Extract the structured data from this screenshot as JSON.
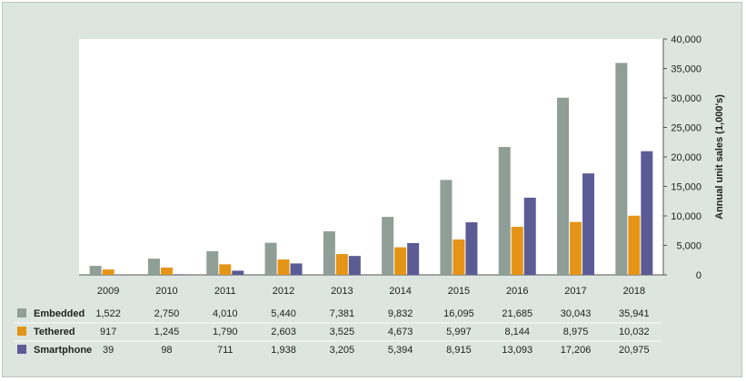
{
  "colors": {
    "embedded": "#8f9e97",
    "tethered": "#e49517",
    "smartphone": "#5b5b96",
    "background": "#dce5df",
    "plot_area": "#ffffff"
  },
  "chart_data": {
    "type": "bar",
    "title": "",
    "xlabel": "",
    "ylabel": "Annual unit sales (1,000's)",
    "ylim": [
      0,
      40000
    ],
    "y_ticks": [
      "0",
      "5,000",
      "10,000",
      "15,000",
      "20,000",
      "25,000",
      "30,000",
      "35,000",
      "40,000"
    ],
    "y_axis_position": "right",
    "grid": false,
    "legend_placement": "table-below",
    "categories": [
      "2009",
      "2010",
      "2011",
      "2012",
      "2013",
      "2014",
      "2015",
      "2016",
      "2017",
      "2018"
    ],
    "series": [
      {
        "name": "Embedded",
        "color_key": "embedded",
        "values": [
          1522,
          2750,
          4010,
          5440,
          7381,
          9832,
          16095,
          21685,
          30043,
          35941
        ],
        "labels": [
          "1,522",
          "2,750",
          "4,010",
          "5,440",
          "7,381",
          "9,832",
          "16,095",
          "21,685",
          "30,043",
          "35,941"
        ]
      },
      {
        "name": "Tethered",
        "color_key": "tethered",
        "values": [
          917,
          1245,
          1790,
          2603,
          3525,
          4673,
          5997,
          8144,
          8975,
          10032
        ],
        "labels": [
          "917",
          "1,245",
          "1,790",
          "2,603",
          "3,525",
          "4,673",
          "5,997",
          "8,144",
          "8,975",
          "10,032"
        ]
      },
      {
        "name": "Smartphone",
        "color_key": "smartphone",
        "values": [
          39,
          98,
          711,
          1938,
          3205,
          5394,
          8915,
          13093,
          17206,
          20975
        ],
        "labels": [
          "39",
          "98",
          "711",
          "1,938",
          "3,205",
          "5,394",
          "8,915",
          "13,093",
          "17,206",
          "20,975"
        ]
      }
    ]
  }
}
